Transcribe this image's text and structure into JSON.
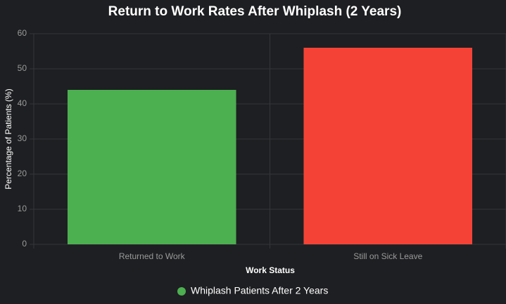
{
  "chart_data": {
    "type": "bar",
    "title": "Return to Work Rates After Whiplash (2 Years)",
    "x_label": "Work Status",
    "y_label": "Percentage of Patients (%)",
    "categories": [
      "Returned to Work",
      "Still on Sick Leave"
    ],
    "series": [
      {
        "name": "Whiplash Patients After 2 Years",
        "colors": [
          "#4caf50",
          "#f44336"
        ],
        "values": [
          44,
          56
        ]
      }
    ],
    "ylim": [
      0,
      60
    ],
    "yticks": [
      0,
      10,
      20,
      30,
      40,
      50,
      60
    ],
    "grid": true,
    "legend": "bottom"
  }
}
